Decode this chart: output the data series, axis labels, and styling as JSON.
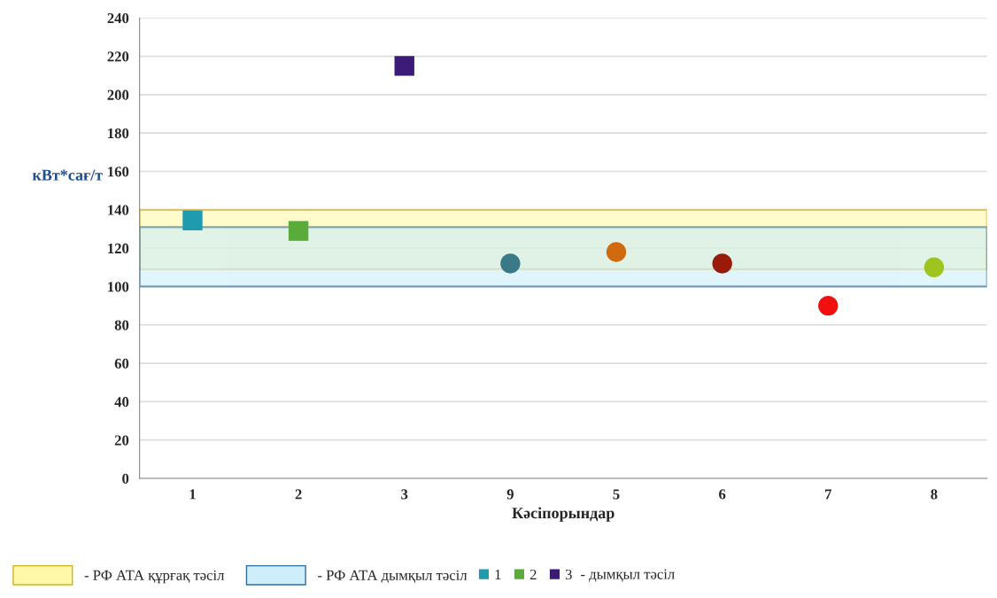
{
  "chart_data": {
    "type": "scatter",
    "xlabel": "Кәсіпорындар",
    "ylabel": "кВт*сағ/т",
    "categories": [
      "1",
      "2",
      "3",
      "9",
      "5",
      "6",
      "7",
      "8"
    ],
    "series": [
      {
        "name": "1",
        "color": "#1f9bb0",
        "marker": "square",
        "values": [
          134.5,
          null,
          null,
          null,
          null,
          null,
          null,
          null
        ]
      },
      {
        "name": "2",
        "color": "#5aac3a",
        "marker": "square",
        "values": [
          null,
          129,
          null,
          null,
          null,
          null,
          null,
          null
        ]
      },
      {
        "name": "3",
        "color": "#3c1a78",
        "marker": "square",
        "values": [
          null,
          null,
          215,
          null,
          null,
          null,
          null,
          null
        ]
      },
      {
        "marker": "circle",
        "colors": [
          "#000000",
          "#000000",
          "#000000",
          "#3a7a88",
          "#d06a10",
          "#9a1a0a",
          "#f01010",
          "#9ec420"
        ],
        "values": [
          null,
          null,
          null,
          112,
          118,
          112,
          90,
          110
        ]
      }
    ],
    "ylim": [
      0,
      240
    ],
    "yticks": [
      0,
      20,
      40,
      60,
      80,
      100,
      120,
      140,
      160,
      180,
      200,
      220,
      240
    ],
    "bands": [
      {
        "axis": "y",
        "from": 109,
        "to": 140,
        "label": "- РФ АТА құрғақ тәсіл",
        "color": "#fff8a8"
      },
      {
        "axis": "y",
        "from": 100,
        "to": 131,
        "label": "- РФ АТА дымқыл тәсіл",
        "color": "#cdeefa"
      }
    ],
    "annotations": [
      "- дымқыл тәсіл"
    ],
    "grid": "y",
    "legend": "bottom"
  }
}
